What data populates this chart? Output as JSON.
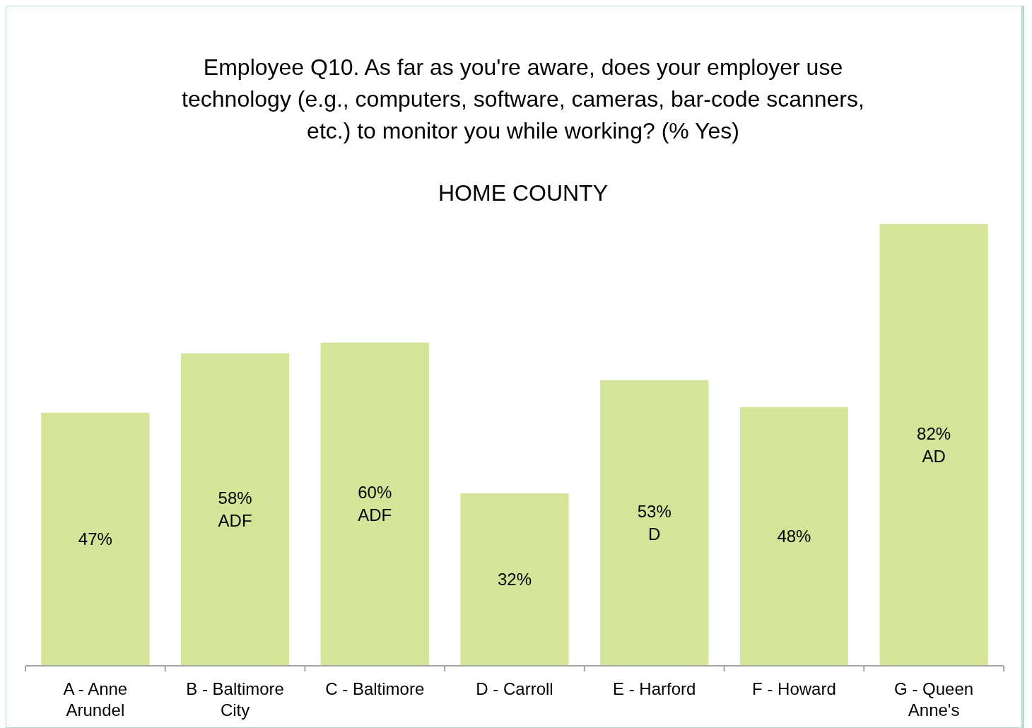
{
  "chart_data": {
    "type": "bar",
    "title": "Employee Q10. As far as you're aware, does your employer use technology (e.g., computers, software, cameras, bar-code scanners, etc.) to monitor you while working? (% Yes)",
    "subtitle": "HOME COUNTY",
    "categories": [
      "A - Anne Arundel",
      "B - Baltimore City",
      "C - Baltimore",
      "D - Carroll",
      "E - Harford",
      "F - Howard",
      "G - Queen Anne's"
    ],
    "values": [
      47,
      58,
      60,
      32,
      53,
      48,
      82
    ],
    "value_labels": [
      "47%",
      "58%\nADF",
      "60%\nADF",
      "32%",
      "53%\nD",
      "48%",
      "82%\nAD"
    ],
    "color": "#d4e499",
    "grid": false
  }
}
